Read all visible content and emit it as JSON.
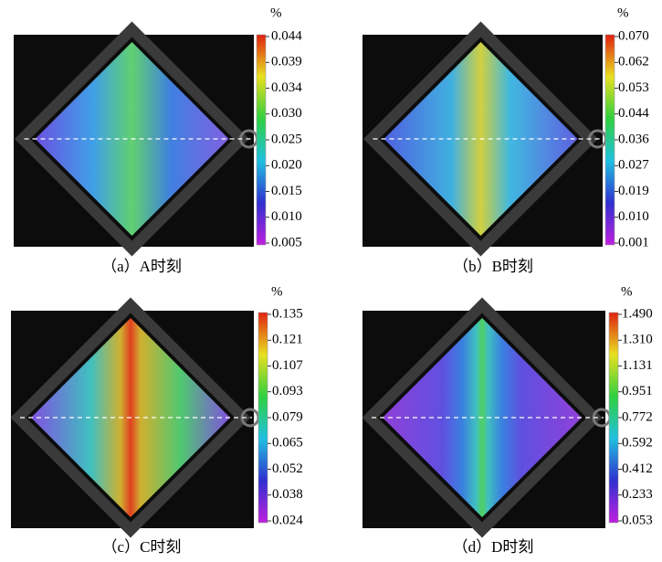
{
  "panels": [
    {
      "unit": "%",
      "ticks": [
        "0.044",
        "0.039",
        "0.034",
        "0.030",
        "0.025",
        "0.020",
        "0.015",
        "0.010",
        "0.005"
      ],
      "caption": "（a）A时刻"
    },
    {
      "unit": "%",
      "ticks": [
        "0.070",
        "0.062",
        "0.053",
        "0.044",
        "0.036",
        "0.027",
        "0.019",
        "0.010",
        "0.001"
      ],
      "caption": "（b）B时刻"
    },
    {
      "unit": "%",
      "ticks": [
        "0.135",
        "0.121",
        "0.107",
        "0.093",
        "0.079",
        "0.065",
        "0.052",
        "0.038",
        "0.024"
      ],
      "caption": "（c）C时刻"
    },
    {
      "unit": "%",
      "ticks": [
        "1.490",
        "1.310",
        "1.131",
        "0.951",
        "0.772",
        "0.592",
        "0.412",
        "0.233",
        "0.053"
      ],
      "caption": "（d）D时刻"
    }
  ]
}
